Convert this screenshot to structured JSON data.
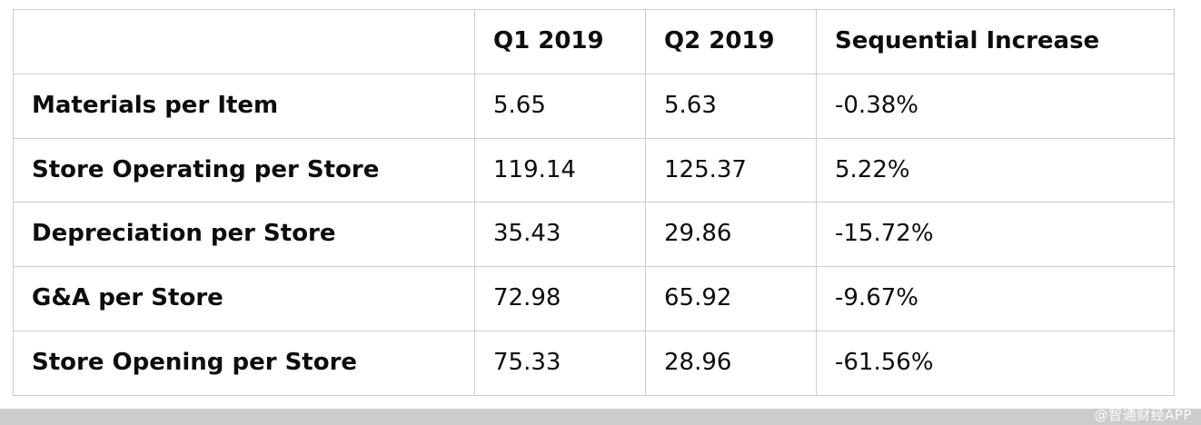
{
  "chart_data": {
    "type": "table",
    "columns": [
      "",
      "Q1 2019",
      "Q2 2019",
      "Sequential Increase"
    ],
    "rows": [
      {
        "label": "Materials per Item",
        "q1": "5.65",
        "q2": "5.63",
        "seq": "-0.38%"
      },
      {
        "label": "Store Operating per Store",
        "q1": "119.14",
        "q2": "125.37",
        "seq": "5.22%"
      },
      {
        "label": "Depreciation per Store",
        "q1": "35.43",
        "q2": "29.86",
        "seq": "-15.72%"
      },
      {
        "label": "G&A per Store",
        "q1": "72.98",
        "q2": "65.92",
        "seq": "-9.67%"
      },
      {
        "label": "Store Opening per Store",
        "q1": "75.33",
        "q2": "28.96",
        "seq": "-61.56%"
      }
    ],
    "title": "",
    "legend_position": "none",
    "grid": true
  },
  "watermark": {
    "text": "@智通财经APP"
  },
  "colors": {
    "border": "#cccccc",
    "text": "#0d0d0d",
    "watermark_bar": "#cccccc"
  }
}
